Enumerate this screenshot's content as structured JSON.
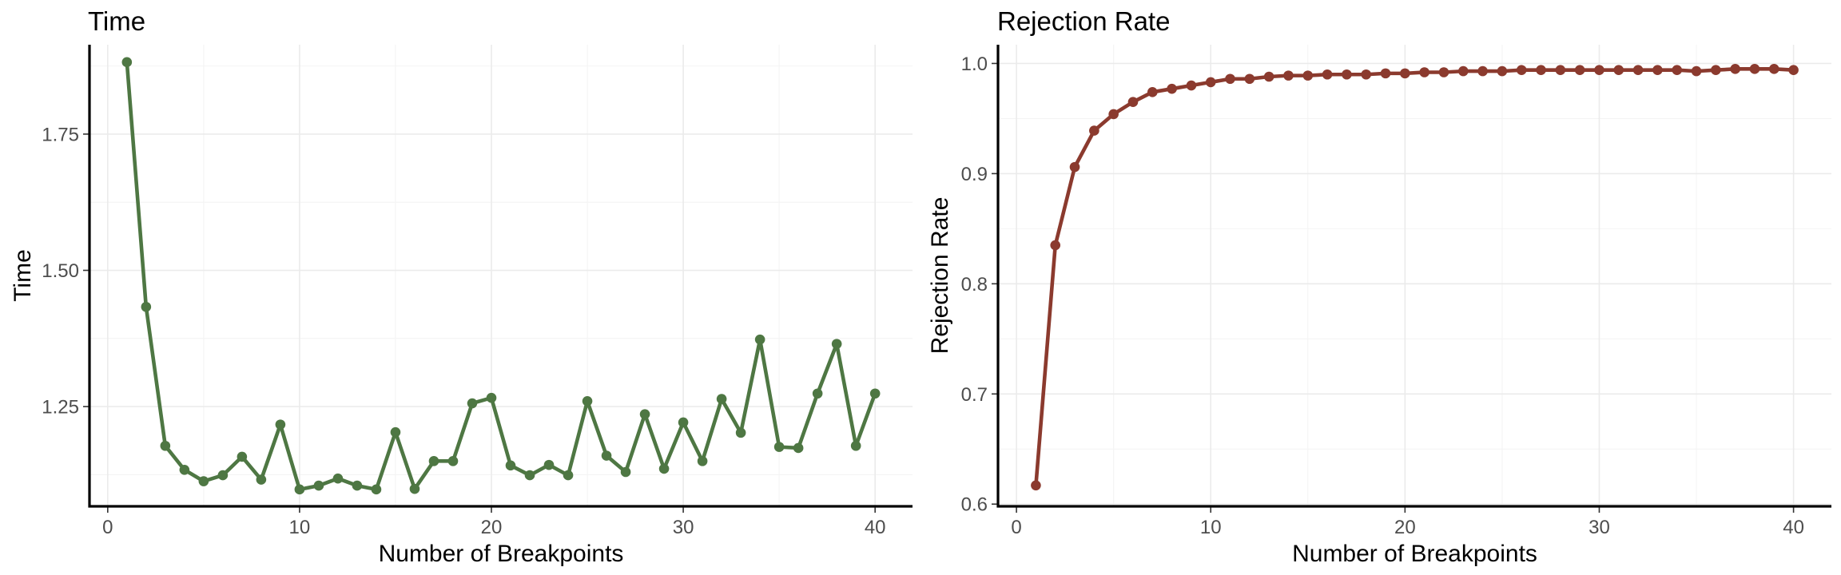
{
  "chart_data": [
    {
      "id": "time",
      "type": "line",
      "title": "Time",
      "xlabel": "Number of Breakpoints",
      "ylabel": "Time",
      "xlim": [
        -0.95,
        41.95
      ],
      "ylim": [
        1.067,
        1.914
      ],
      "xticks": [
        0,
        10,
        20,
        30,
        40
      ],
      "xtick_labels": [
        "0",
        "10",
        "20",
        "30",
        "40"
      ],
      "yticks": [
        1.25,
        1.5,
        1.75
      ],
      "ytick_labels": [
        "1.25",
        "1.50",
        "1.75"
      ],
      "grid": true,
      "color": "#4e7743",
      "x": [
        1,
        2,
        3,
        4,
        5,
        6,
        7,
        8,
        9,
        10,
        11,
        12,
        13,
        14,
        15,
        16,
        17,
        18,
        19,
        20,
        21,
        22,
        23,
        24,
        25,
        26,
        27,
        28,
        29,
        30,
        31,
        32,
        33,
        34,
        35,
        36,
        37,
        38,
        39,
        40
      ],
      "y": [
        1.882,
        1.433,
        1.178,
        1.134,
        1.113,
        1.124,
        1.158,
        1.116,
        1.217,
        1.098,
        1.105,
        1.118,
        1.105,
        1.098,
        1.203,
        1.099,
        1.15,
        1.15,
        1.256,
        1.266,
        1.142,
        1.124,
        1.143,
        1.124,
        1.26,
        1.16,
        1.13,
        1.236,
        1.136,
        1.221,
        1.15,
        1.264,
        1.202,
        1.373,
        1.176,
        1.174,
        1.274,
        1.365,
        1.178,
        1.274
      ]
    },
    {
      "id": "rejection",
      "type": "line",
      "title": "Rejection Rate",
      "xlabel": "Number of Breakpoints",
      "ylabel": "Rejection Rate",
      "xlim": [
        -0.95,
        41.95
      ],
      "ylim": [
        0.598,
        1.017
      ],
      "xticks": [
        0,
        10,
        20,
        30,
        40
      ],
      "xtick_labels": [
        "0",
        "10",
        "20",
        "30",
        "40"
      ],
      "yticks": [
        0.6,
        0.7,
        0.8,
        0.9,
        1.0
      ],
      "ytick_labels": [
        "0.6",
        "0.7",
        "0.8",
        "0.9",
        "1.0"
      ],
      "grid": true,
      "color": "#8b3a2e",
      "x": [
        1,
        2,
        3,
        4,
        5,
        6,
        7,
        8,
        9,
        10,
        11,
        12,
        13,
        14,
        15,
        16,
        17,
        18,
        19,
        20,
        21,
        22,
        23,
        24,
        25,
        26,
        27,
        28,
        29,
        30,
        31,
        32,
        33,
        34,
        35,
        36,
        37,
        38,
        39,
        40
      ],
      "y": [
        0.617,
        0.835,
        0.906,
        0.939,
        0.954,
        0.965,
        0.974,
        0.977,
        0.98,
        0.983,
        0.986,
        0.986,
        0.988,
        0.989,
        0.989,
        0.99,
        0.99,
        0.99,
        0.991,
        0.991,
        0.992,
        0.992,
        0.993,
        0.993,
        0.993,
        0.994,
        0.994,
        0.994,
        0.994,
        0.994,
        0.994,
        0.994,
        0.994,
        0.994,
        0.993,
        0.994,
        0.995,
        0.995,
        0.995,
        0.994
      ]
    }
  ]
}
